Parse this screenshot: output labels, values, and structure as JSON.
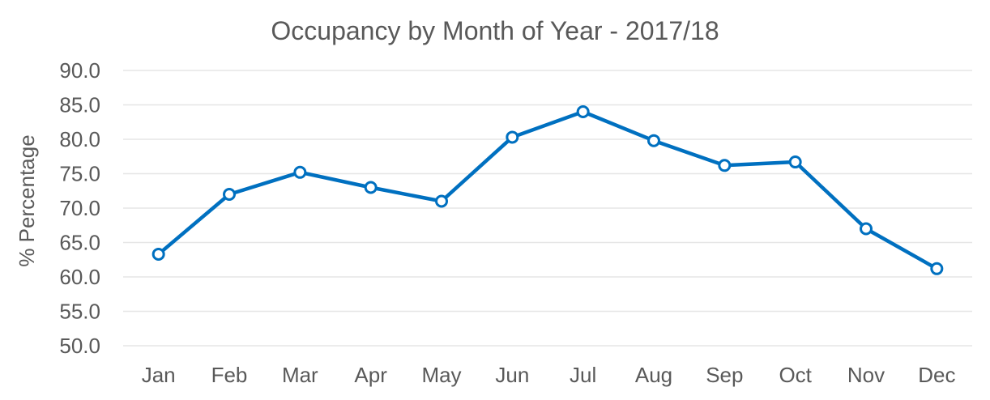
{
  "chart_data": {
    "type": "line",
    "title": "Occupancy by Month of Year - 2017/18",
    "xlabel": "",
    "ylabel": "% Percentage",
    "categories": [
      "Jan",
      "Feb",
      "Mar",
      "Apr",
      "May",
      "Jun",
      "Jul",
      "Aug",
      "Sep",
      "Oct",
      "Nov",
      "Dec"
    ],
    "series": [
      {
        "values": [
          63.3,
          72.0,
          75.2,
          73.0,
          71.0,
          80.3,
          84.0,
          79.8,
          76.2,
          76.7,
          67.0,
          61.2
        ]
      }
    ],
    "ylim": [
      50,
      90
    ],
    "yticks": [
      "90.0",
      "85.0",
      "80.0",
      "75.0",
      "70.0",
      "65.0",
      "60.0",
      "55.0",
      "50.0"
    ],
    "grid": true,
    "legend": "none",
    "colors": {
      "series": "#0070c0",
      "text": "#595959",
      "grid": "#e6e6e6"
    }
  }
}
